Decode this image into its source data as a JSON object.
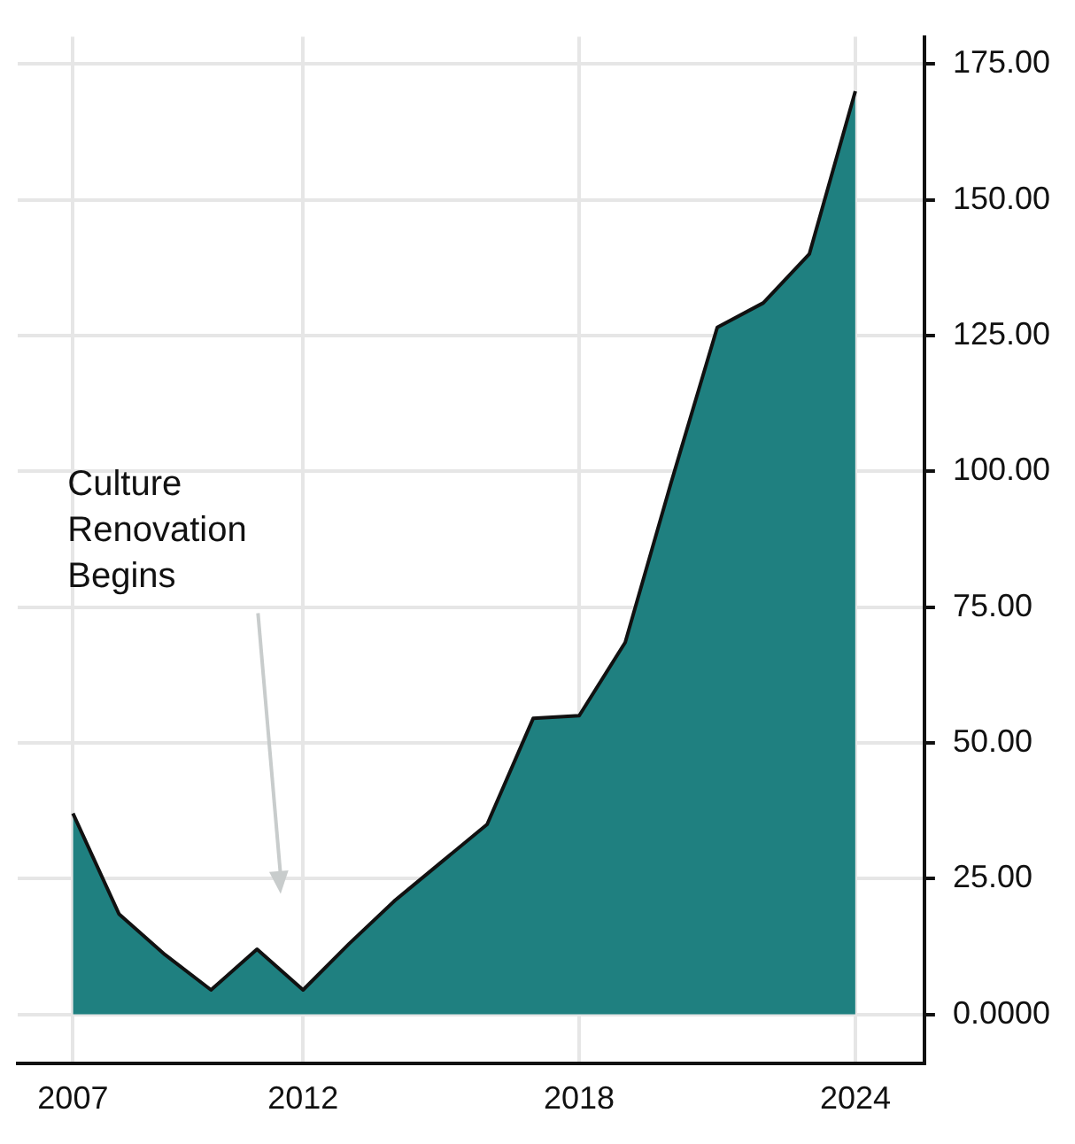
{
  "chart_data": {
    "type": "area",
    "x": [
      2007,
      2008,
      2009,
      2010,
      2011,
      2012,
      2013,
      2014,
      2015,
      2016,
      2017,
      2018,
      2019,
      2020,
      2021,
      2022,
      2023,
      2024
    ],
    "series": [
      {
        "color": "#1f8080",
        "values": [
          37,
          18.5,
          11,
          4.5,
          12,
          4.5,
          13,
          21,
          28,
          35,
          54.5,
          55,
          68.5,
          98,
          126.5,
          131,
          140,
          170
        ]
      }
    ],
    "xlim": [
      2005.8,
      2025.5
    ],
    "xticks": [
      2007,
      2012,
      2018,
      2024
    ],
    "ylim": [
      -9,
      180
    ],
    "yticks": [
      {
        "value": 0,
        "label": "0.0000"
      },
      {
        "value": 25,
        "label": "25.00"
      },
      {
        "value": 50,
        "label": "50.00"
      },
      {
        "value": 75,
        "label": "75.00"
      },
      {
        "value": 100,
        "label": "100.00"
      },
      {
        "value": 125,
        "label": "125.00"
      },
      {
        "value": 150,
        "label": "150.00"
      },
      {
        "value": 175,
        "label": "175.00"
      }
    ],
    "grid": true,
    "annotations": [
      "Culture\nRenovation\nBegins"
    ]
  }
}
